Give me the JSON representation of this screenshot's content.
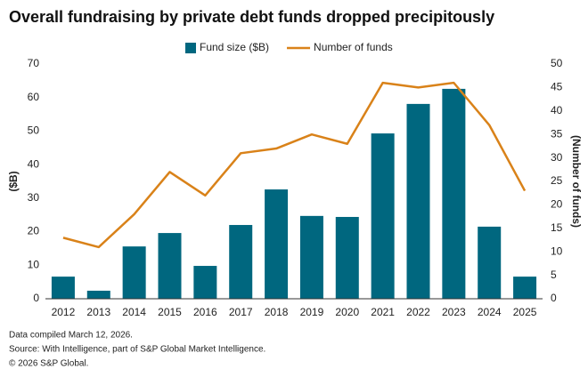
{
  "chart_data": {
    "type": "bar",
    "title": "Overall fundraising by private debt funds dropped precipitously",
    "categories": [
      "2012",
      "2013",
      "2014",
      "2015",
      "2016",
      "2017",
      "2018",
      "2019",
      "2020",
      "2021",
      "2022",
      "2023",
      "2024",
      "2025"
    ],
    "series": [
      {
        "name": "Fund size ($B)",
        "type": "bar",
        "color": "#00677f",
        "axis": "y",
        "values": [
          6.6,
          2.4,
          15.6,
          19.6,
          9.8,
          22,
          32.6,
          24.7,
          24.4,
          49.3,
          58.1,
          62.6,
          21.5,
          6.6
        ]
      },
      {
        "name": "Number of funds",
        "type": "line",
        "color": "#d98219",
        "axis": "y2",
        "values": [
          13,
          11,
          18,
          27,
          22,
          31,
          32,
          35,
          33,
          46,
          45,
          46,
          37,
          23
        ]
      }
    ],
    "ylabel": "($B)",
    "y2label": "(Number of funds)",
    "ylim": [
      0,
      70
    ],
    "yticks": [
      0,
      10,
      20,
      30,
      40,
      50,
      60,
      70
    ],
    "y2lim": [
      0,
      50
    ],
    "y2ticks": [
      0,
      5,
      10,
      15,
      20,
      25,
      30,
      35,
      40,
      45,
      50
    ],
    "grid": false,
    "legend": "top",
    "notes": [
      "Data compiled March 12, 2026.",
      "Source: With Intelligence, part of S&P Global Market Intelligence.",
      "© 2026 S&P Global."
    ]
  }
}
